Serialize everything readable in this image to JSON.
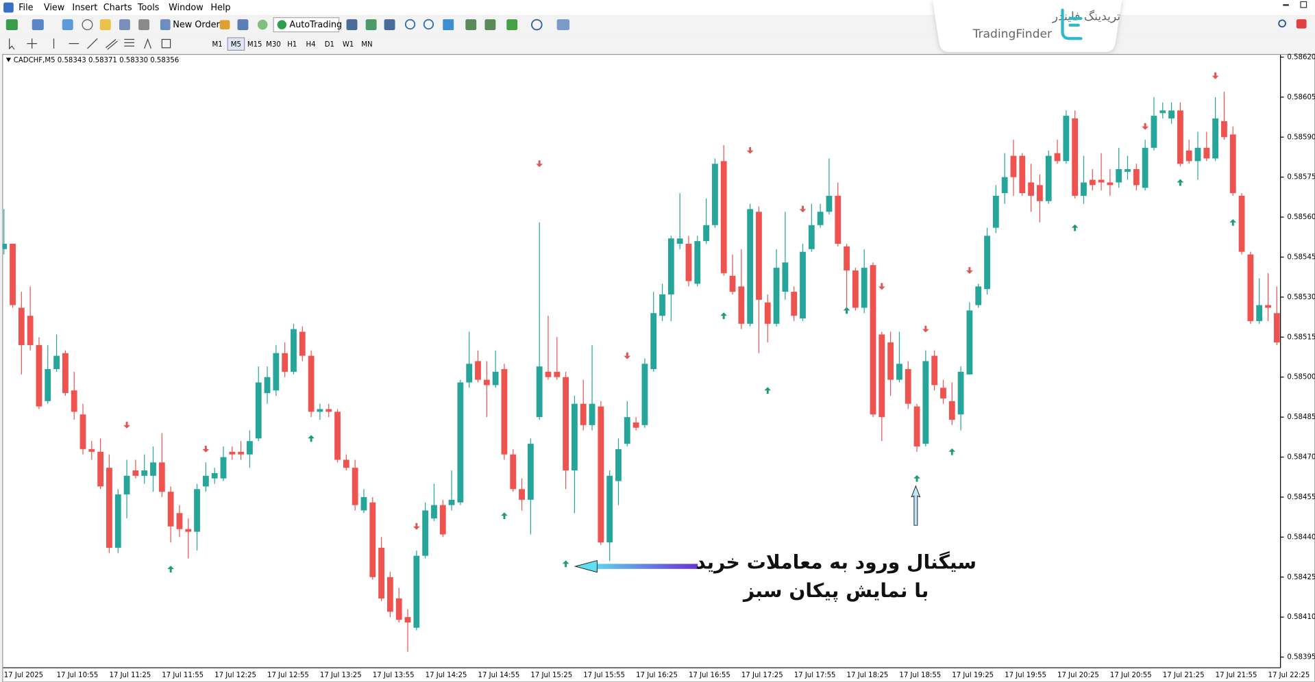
{
  "menu": [
    "File",
    "View",
    "Insert",
    "Charts",
    "Tools",
    "Window",
    "Help"
  ],
  "toolbar": {
    "new_order": "New Order",
    "auto_trading": "AutoTrading"
  },
  "timeframes": [
    "M1",
    "M5",
    "M15",
    "M30",
    "H1",
    "H4",
    "D1",
    "W1",
    "MN"
  ],
  "logo": {
    "persian": "تریدینگ فایندر",
    "latin": "TradingFinder"
  },
  "chart_data": {
    "type": "candlestick",
    "title": "CADCHF,M5  0.58343 0.58371 0.58330 0.58356",
    "annotations": [
      "سیگنال ورود به معاملات خرید",
      "با نمایش پیکان سبز"
    ],
    "up_color": "#26a69a",
    "down_color": "#ef5350",
    "grid": false,
    "ylim": [
      0.58391,
      0.58621
    ],
    "yticks": [
      0.58395,
      {
        "value": 0.5841,
        "label": "0.58410"
      },
      0.58425,
      {
        "value": 0.5844,
        "label": "0.58440"
      },
      0.58455,
      {
        "value": 0.5847,
        "label": "0.58470"
      },
      0.58485,
      {
        "value": 0.585,
        "label": "0.58500"
      },
      0.58515,
      {
        "value": 0.5853,
        "label": "0.58530"
      },
      0.58545,
      {
        "value": 0.5856,
        "label": "0.58560"
      },
      0.58575,
      {
        "value": 0.5859,
        "label": "0.58590"
      },
      0.58605,
      {
        "value": 0.5862,
        "label": "0.58620"
      }
    ],
    "categories": [
      "17 Jul 2025",
      null,
      null,
      null,
      null,
      null,
      "17 Jul 10:55",
      null,
      null,
      null,
      null,
      null,
      "17 Jul 11:25",
      null,
      null,
      null,
      null,
      null,
      "17 Jul 11:55",
      null,
      null,
      null,
      null,
      null,
      "17 Jul 12:25",
      null,
      null,
      null,
      null,
      null,
      "17 Jul 12:55",
      null,
      null,
      null,
      null,
      null,
      "17 Jul 13:25",
      null,
      null,
      null,
      null,
      null,
      "17 Jul 13:55",
      null,
      null,
      null,
      null,
      null,
      "17 Jul 14:25",
      null,
      null,
      null,
      null,
      null,
      "17 Jul 14:55",
      null,
      null,
      null,
      null,
      null,
      "17 Jul 15:25",
      null,
      null,
      null,
      null,
      null,
      "17 Jul 15:55",
      null,
      null,
      null,
      null,
      null,
      "17 Jul 16:25",
      null,
      null,
      null,
      null,
      null,
      "17 Jul 16:55",
      null,
      null,
      null,
      null,
      null,
      "17 Jul 17:25",
      null,
      null,
      null,
      null,
      null,
      "17 Jul 17:55",
      null,
      null,
      null,
      null,
      null,
      "17 Jul 18:25",
      null,
      null,
      null,
      null,
      null,
      "17 Jul 18:55",
      null,
      null,
      null,
      null,
      null,
      "17 Jul 19:25",
      null,
      null,
      null,
      null,
      null,
      "17 Jul 19:55",
      null,
      null,
      null,
      null,
      null,
      "17 Jul 20:25",
      null,
      null,
      null,
      null,
      null,
      "17 Jul 20:55",
      null,
      null,
      null,
      null,
      null,
      "17 Jul 21:25",
      null,
      null,
      null,
      null,
      null,
      "17 Jul 21:55",
      null,
      null,
      null,
      null,
      null,
      "17 Jul 22:25",
      null
    ],
    "open": [
      0.58548,
      0.5855,
      0.58526,
      0.58523,
      0.58512,
      0.58491,
      0.58503,
      0.58509,
      0.58495,
      0.58486,
      0.58473,
      0.58472,
      0.58466,
      0.58436,
      0.58456,
      0.58465,
      0.58463,
      0.58463,
      0.58468,
      0.58457,
      0.58449,
      0.58443,
      0.58442,
      0.58459,
      0.58462,
      0.58462,
      0.58472,
      0.58472,
      0.58471,
      0.58477,
      0.58494,
      0.58495,
      0.58509,
      0.58502,
      0.58517,
      0.58508,
      0.58487,
      0.58488,
      0.58487,
      0.58469,
      0.58466,
      0.5845,
      0.58453,
      0.58436,
      0.58425,
      0.58417,
      0.5841,
      0.58406,
      0.58433,
      0.58447,
      0.58452,
      0.58452,
      0.58453,
      0.58498,
      0.58506,
      0.58499,
      0.58497,
      0.58503,
      0.58471,
      0.58458,
      0.58454,
      0.58485,
      0.58502,
      0.58502,
      0.585,
      0.58465,
      0.5849,
      0.58482,
      0.58489,
      0.58438,
      0.58461,
      0.58475,
      0.58483,
      0.58482,
      0.58503,
      0.58523,
      0.58531,
      0.5855,
      0.5855,
      0.58535,
      0.58551,
      0.58557,
      0.58581,
      0.58538,
      0.58534,
      0.5852,
      0.58562,
      0.58528,
      0.5852,
      0.58532,
      0.58532,
      0.58522,
      0.58548,
      0.58557,
      0.58562,
      0.58568,
      0.58549,
      0.5854,
      0.58526,
      0.58542,
      0.58516,
      0.58513,
      0.58499,
      0.58503,
      0.58489,
      0.58475,
      0.58508,
      0.58496,
      0.58491,
      0.58486,
      0.58501,
      0.58527,
      0.58533,
      0.58556,
      0.58569,
      0.58583,
      0.58583,
      0.58573,
      0.58572,
      0.58566,
      0.58584,
      0.58581,
      0.58597,
      0.58568,
      0.58574,
      0.58574,
      0.58573,
      0.58573,
      0.58577,
      0.58578,
      0.58571,
      0.58586,
      0.58599,
      0.58597,
      0.586,
      0.58585,
      0.58581,
      0.58586,
      0.58582,
      0.58596,
      0.58591,
      0.58568,
      0.58546,
      0.58521,
      0.58527,
      0.58524
    ],
    "high": [
      0.58563,
      0.5855,
      0.58532,
      0.58534,
      0.58515,
      0.58512,
      0.58516,
      0.5851,
      0.58502,
      0.5849,
      0.58476,
      0.58477,
      0.58471,
      0.58458,
      0.58469,
      0.58469,
      0.58471,
      0.58474,
      0.58479,
      0.58459,
      0.58452,
      0.58447,
      0.5846,
      0.58468,
      0.58466,
      0.58474,
      0.58474,
      0.58476,
      0.5848,
      0.58504,
      0.58504,
      0.58512,
      0.58513,
      0.5852,
      0.58519,
      0.5851,
      0.5849,
      0.5849,
      0.58488,
      0.58471,
      0.58469,
      0.58458,
      0.58455,
      0.5844,
      0.58427,
      0.58421,
      0.58413,
      0.58435,
      0.58453,
      0.5846,
      0.58454,
      0.58465,
      0.58499,
      0.58517,
      0.5851,
      0.58506,
      0.5851,
      0.58505,
      0.58473,
      0.58462,
      0.58477,
      0.58558,
      0.58523,
      0.58515,
      0.58502,
      0.58493,
      0.58499,
      0.58512,
      0.58491,
      0.58465,
      0.58477,
      0.58491,
      0.58485,
      0.58507,
      0.58532,
      0.58535,
      0.58553,
      0.58569,
      0.58553,
      0.58553,
      0.58567,
      0.58582,
      0.58587,
      0.58546,
      0.58548,
      0.58565,
      0.58564,
      0.58531,
      0.58548,
      0.58562,
      0.58534,
      0.5855,
      0.58565,
      0.58565,
      0.58582,
      0.58573,
      0.5855,
      0.58541,
      0.58548,
      0.58543,
      0.58517,
      0.58517,
      0.58517,
      0.58506,
      0.5849,
      0.5851,
      0.5851,
      0.58499,
      0.58498,
      0.58504,
      0.58528,
      0.58535,
      0.58556,
      0.58572,
      0.58584,
      0.58589,
      0.58584,
      0.5858,
      0.58576,
      0.58585,
      0.58589,
      0.586,
      0.586,
      0.58583,
      0.58578,
      0.58584,
      0.58578,
      0.58586,
      0.58583,
      0.5858,
      0.58589,
      0.58605,
      0.58603,
      0.58603,
      0.58603,
      0.58589,
      0.58592,
      0.58592,
      0.58605,
      0.58607,
      0.58594,
      0.58569,
      0.58547,
      0.58537,
      0.58539,
      0.58534
    ],
    "low": [
      0.58546,
      0.58526,
      0.58501,
      0.5851,
      0.58488,
      0.5849,
      0.58502,
      0.58493,
      0.58484,
      0.58471,
      0.58469,
      0.58458,
      0.58434,
      0.58434,
      0.58447,
      0.58462,
      0.5846,
      0.58457,
      0.58455,
      0.58438,
      0.5844,
      0.58432,
      0.58435,
      0.58457,
      0.5846,
      0.58461,
      0.58469,
      0.58469,
      0.58466,
      0.58476,
      0.5849,
      0.58493,
      0.585,
      0.58501,
      0.58506,
      0.58485,
      0.58484,
      0.58485,
      0.58468,
      0.58465,
      0.5845,
      0.58449,
      0.58424,
      0.58416,
      0.5841,
      0.58408,
      0.58397,
      0.58405,
      0.58432,
      0.58446,
      0.5844,
      0.5845,
      0.58452,
      0.58496,
      0.58498,
      0.58485,
      0.58496,
      0.58469,
      0.58457,
      0.5845,
      0.58441,
      0.58484,
      0.58499,
      0.58499,
      0.58458,
      0.58449,
      0.5848,
      0.5848,
      0.58437,
      0.58431,
      0.58452,
      0.58474,
      0.5848,
      0.58481,
      0.58502,
      0.58521,
      0.58521,
      0.58548,
      0.58534,
      0.58534,
      0.5855,
      0.58556,
      0.58538,
      0.58531,
      0.58518,
      0.58519,
      0.58509,
      0.58513,
      0.58519,
      0.58529,
      0.58521,
      0.58521,
      0.58547,
      0.58556,
      0.58561,
      0.58549,
      0.58526,
      0.58525,
      0.58524,
      0.58485,
      0.58476,
      0.58493,
      0.58498,
      0.58488,
      0.58472,
      0.58474,
      0.58495,
      0.5849,
      0.58482,
      0.5848,
      0.58501,
      0.58526,
      0.58531,
      0.58554,
      0.58565,
      0.58568,
      0.58568,
      0.58562,
      0.58558,
      0.58565,
      0.5858,
      0.5858,
      0.58567,
      0.58565,
      0.5857,
      0.5857,
      0.58568,
      0.58571,
      0.58574,
      0.5857,
      0.5857,
      0.58585,
      0.58597,
      0.58595,
      0.58579,
      0.5858,
      0.58574,
      0.58581,
      0.58581,
      0.58589,
      0.58568,
      0.58546,
      0.5852,
      0.5852,
      0.58521,
      0.58512
    ],
    "close": [
      0.5855,
      0.58527,
      0.58512,
      0.58512,
      0.58489,
      0.58503,
      0.58508,
      0.58494,
      0.58487,
      0.58473,
      0.58472,
      0.58459,
      0.58436,
      0.58456,
      0.58463,
      0.58463,
      0.58465,
      0.58468,
      0.58457,
      0.58444,
      0.58443,
      0.58442,
      0.58458,
      0.58463,
      0.58464,
      0.5847,
      0.58471,
      0.58471,
      0.58476,
      0.58498,
      0.585,
      0.58509,
      0.58502,
      0.58518,
      0.58508,
      0.58487,
      0.58488,
      0.58487,
      0.58469,
      0.58466,
      0.58452,
      0.58455,
      0.58425,
      0.58417,
      0.58412,
      0.58409,
      0.58408,
      0.58433,
      0.5845,
      0.58452,
      0.58441,
      0.58454,
      0.58498,
      0.58505,
      0.58499,
      0.58497,
      0.58502,
      0.58471,
      0.58458,
      0.58454,
      0.58475,
      0.58504,
      0.585,
      0.585,
      0.58465,
      0.5849,
      0.58482,
      0.5849,
      0.58438,
      0.58463,
      0.58473,
      0.58485,
      0.58481,
      0.58505,
      0.58524,
      0.58531,
      0.58552,
      0.58552,
      0.58536,
      0.58551,
      0.58557,
      0.5858,
      0.58539,
      0.58532,
      0.5852,
      0.58563,
      0.58529,
      0.5852,
      0.58541,
      0.58543,
      0.58523,
      0.58547,
      0.58557,
      0.58562,
      0.58568,
      0.5855,
      0.5854,
      0.58526,
      0.58541,
      0.58486,
      0.58485,
      0.58499,
      0.58505,
      0.5849,
      0.58474,
      0.58506,
      0.58497,
      0.58492,
      0.58484,
      0.58502,
      0.58525,
      0.58534,
      0.58553,
      0.58568,
      0.58575,
      0.58575,
      0.58569,
      0.58568,
      0.58566,
      0.58583,
      0.58581,
      0.58598,
      0.58568,
      0.58573,
      0.58572,
      0.58573,
      0.58572,
      0.58578,
      0.58578,
      0.58572,
      0.58586,
      0.58598,
      0.586,
      0.586,
      0.5858,
      0.58581,
      0.58586,
      0.58582,
      0.58597,
      0.5859,
      0.58569,
      0.58547,
      0.58521,
      0.58527,
      0.58526,
      0.58513
    ],
    "sell_arrows": {
      "color": "#e35454",
      "index": [
        14,
        23,
        47,
        61,
        71,
        85,
        91,
        100,
        105,
        110,
        130,
        138
      ],
      "values": [
        0.58482,
        0.58473,
        0.58444,
        0.5858,
        0.58508,
        0.58585,
        0.58563,
        0.58534,
        0.58518,
        0.5854,
        0.58594,
        0.58613
      ]
    },
    "buy_arrows": {
      "color": "#1f9a7a",
      "index": [
        19,
        35,
        57,
        64,
        82,
        87,
        96,
        104,
        108,
        122,
        134,
        140
      ],
      "values": [
        0.58428,
        0.58477,
        0.58448,
        0.5843,
        0.58523,
        0.58495,
        0.58525,
        0.58462,
        0.58472,
        0.58556,
        0.58573,
        0.58558
      ]
    }
  }
}
